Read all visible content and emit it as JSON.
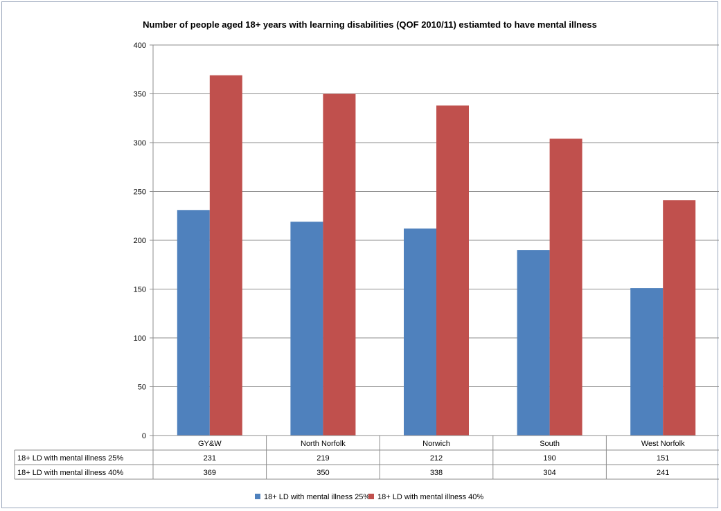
{
  "chart_data": {
    "type": "bar",
    "title": "Number of people aged 18+ years with learning disabilities (QOF 2010/11) estiamted to have mental illness",
    "categories": [
      "GY&W",
      "North Norfolk",
      "Norwich",
      "South",
      "West Norfolk"
    ],
    "series": [
      {
        "name": "18+ LD with mental illness 25%",
        "values": [
          231,
          219,
          212,
          190,
          151
        ],
        "color": "#4f81bd"
      },
      {
        "name": "18+ LD with mental illness 40%",
        "values": [
          369,
          350,
          338,
          304,
          241
        ],
        "color": "#c0504d"
      }
    ],
    "ylim": [
      0,
      400
    ],
    "yticks": [
      0,
      50,
      100,
      150,
      200,
      250,
      300,
      350,
      400
    ],
    "grid": true,
    "data_table": true,
    "legend_position": "bottom"
  }
}
